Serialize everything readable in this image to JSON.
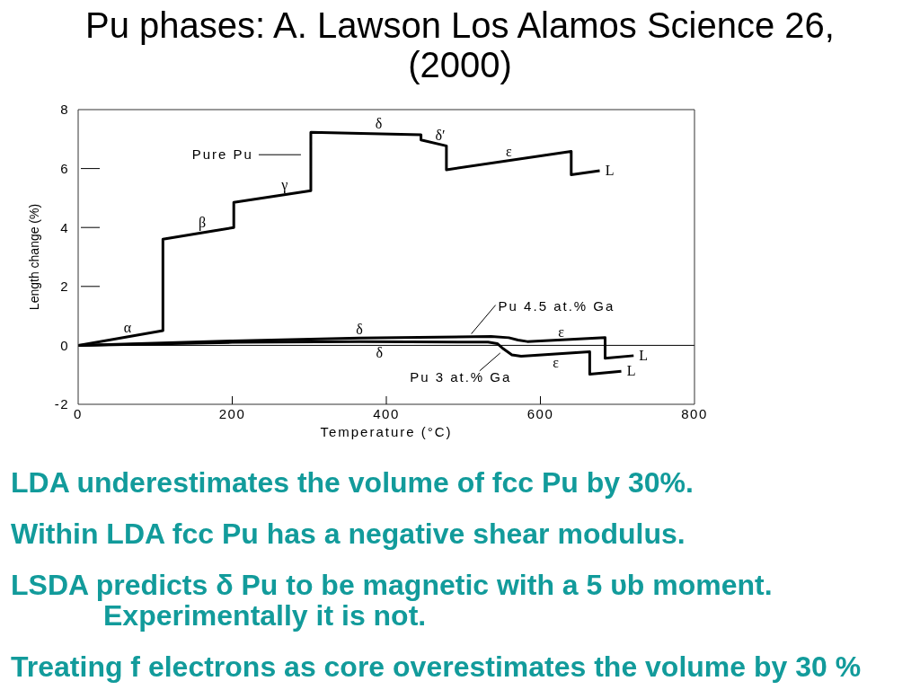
{
  "chart_data": {
    "type": "line",
    "title": "Pu phases: A. Lawson Los Alamos Science 26, (2000)",
    "xlabel": "Temperature (°C)",
    "ylabel": "Length change (%)",
    "xlim": [
      0,
      800
    ],
    "xticks": [
      0,
      200,
      400,
      600,
      800
    ],
    "ylim": [
      -2,
      8
    ],
    "yticks": [
      -2,
      0,
      2,
      4,
      6,
      8
    ],
    "ref_lines": [
      {
        "axis": "y",
        "value": 0
      }
    ],
    "series": [
      {
        "name": "Pure Pu",
        "color": "#000000",
        "x": [
          0,
          110,
          110,
          202,
          202,
          302,
          302,
          445,
          445,
          478,
          478,
          640,
          640,
          677
        ],
        "values": [
          0,
          0.5,
          3.6,
          4.0,
          4.85,
          5.25,
          7.23,
          7.15,
          6.97,
          6.77,
          5.96,
          6.58,
          5.79,
          5.93
        ]
      },
      {
        "name": "Pu 4.5 at.% Ga",
        "color": "#000000",
        "x": [
          0,
          200,
          365,
          536,
          559,
          571,
          583,
          684,
          684,
          721
        ],
        "values": [
          0,
          0.15,
          0.25,
          0.3,
          0.26,
          0.18,
          0.13,
          0.26,
          -0.44,
          -0.35
        ]
      },
      {
        "name": "Pu 3 at.% Ga",
        "color": "#000000",
        "x": [
          0,
          200,
          365,
          532,
          544,
          552,
          563,
          575,
          664,
          664,
          705
        ],
        "values": [
          0,
          0.1,
          0.13,
          0.11,
          0.06,
          -0.12,
          -0.32,
          -0.37,
          -0.22,
          -0.98,
          -0.88
        ]
      }
    ],
    "annotations": [
      {
        "text": "α",
        "x": 64,
        "y": 0.29
      },
      {
        "text": "β",
        "x": 161,
        "y": 3.82
      },
      {
        "text": "γ",
        "x": 268,
        "y": 5.11
      },
      {
        "text": "δ",
        "x": 390,
        "y": 7.18
      },
      {
        "text": "δ′",
        "x": 470,
        "y": 6.82
      },
      {
        "text": "ε",
        "x": 559,
        "y": 6.27
      },
      {
        "text": "L",
        "x": 677,
        "y": 5.93
      },
      {
        "text": "δ",
        "x": 365,
        "y": 0.25
      },
      {
        "text": "ε",
        "x": 627,
        "y": 0.19
      },
      {
        "text": "L",
        "x": 721,
        "y": -0.35
      },
      {
        "text": "δ",
        "x": 391,
        "y": 0.13
      },
      {
        "text": "ε",
        "x": 620,
        "y": -0.29
      },
      {
        "text": "L",
        "x": 705,
        "y": -0.88
      },
      "LDA underestimates the volume of fcc Pu by 30%.",
      "Within LDA fcc Pu has a negative shear modulus.",
      "LSDA predicts δ Pu to be magnetic with a 5 υb moment.\nExperimentally it is not.",
      "Treating f electrons as core overestimates the volume by 30 %"
    ]
  }
}
